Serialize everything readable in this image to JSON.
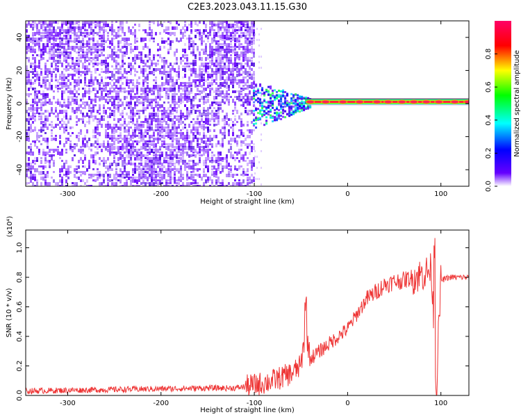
{
  "title": "C2E3.2023.043.11.15.G30",
  "chart_data": [
    {
      "type": "heatmap",
      "xlabel": "Height of straight line (km)",
      "ylabel": "Frequency (Hz)",
      "xlim": [
        -345,
        130
      ],
      "ylim": [
        -50,
        50
      ],
      "x_ticks": [
        -300,
        -200,
        -100,
        0,
        100
      ],
      "y_ticks": [
        -40,
        -20,
        0,
        20,
        40
      ],
      "colorbar": {
        "label": "Normalized spectral amplitude",
        "range": [
          0,
          1
        ],
        "ticks": [
          0.0,
          0.2,
          0.4,
          0.6,
          0.8
        ],
        "stops": [
          "#ffffff",
          "#6600ff",
          "#0000ff",
          "#00ffff",
          "#00ff00",
          "#ffff00",
          "#ff0000",
          "#ff0066"
        ]
      },
      "features": {
        "noise_region_x": [
          -345,
          -100
        ],
        "transition_region_x": [
          -105,
          -40
        ],
        "tone_region_x": [
          -40,
          130
        ],
        "tone_frequency_hz": 1
      }
    },
    {
      "type": "line",
      "xlabel": "Height of straight line (km)",
      "ylabel": "SNR (10 * v/v)",
      "y_multiplier": "(x10⁴)",
      "xlim": [
        -345,
        130
      ],
      "ylim": [
        0,
        1.12
      ],
      "x_ticks": [
        -300,
        -200,
        -100,
        0,
        100
      ],
      "y_ticks": [
        0.0,
        0.2,
        0.4,
        0.6,
        0.8,
        1.0
      ],
      "series": [
        {
          "color": "#ee3333",
          "x": [
            -345,
            -300,
            -250,
            -200,
            -150,
            -120,
            -100,
            -80,
            -60,
            -50,
            -45,
            -40,
            -30,
            -20,
            -10,
            0,
            10,
            20,
            30,
            40,
            50,
            60,
            70,
            80,
            90,
            95,
            100,
            110,
            120,
            130
          ],
          "y": [
            0.03,
            0.035,
            0.04,
            0.045,
            0.05,
            0.05,
            0.07,
            0.1,
            0.15,
            0.2,
            0.45,
            0.25,
            0.3,
            0.35,
            0.4,
            0.45,
            0.55,
            0.65,
            0.7,
            0.75,
            0.77,
            0.78,
            0.8,
            0.82,
            0.85,
            0.05,
            0.78,
            0.8,
            0.8,
            0.8
          ]
        }
      ]
    }
  ]
}
